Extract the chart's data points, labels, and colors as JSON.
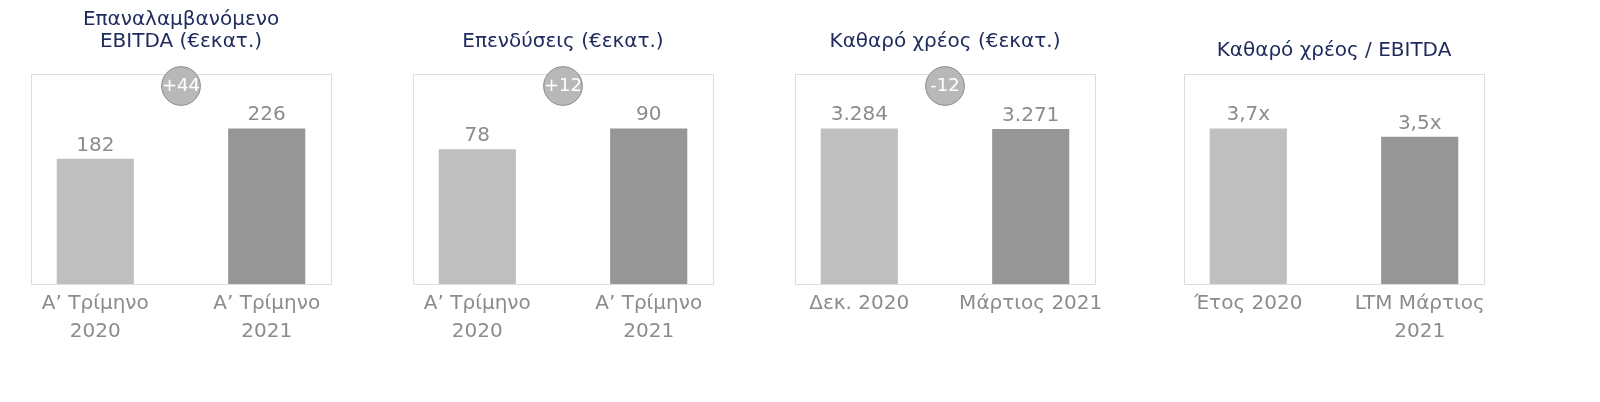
{
  "chart_data": [
    {
      "type": "bar",
      "title": "Επαναλαμβανόμενο EBITDA (€εκατ.)",
      "categories": [
        "Α’ Τρίμηνο 2020",
        "Α’ Τρίμηνο 2021"
      ],
      "values": [
        182,
        226
      ],
      "colors": [
        "#bfbfbf",
        "#969696"
      ],
      "data_labels": true,
      "annotations": [
        "+44"
      ]
    },
    {
      "type": "bar",
      "title": "Επενδύσεις (€εκατ.)",
      "categories": [
        "Α’ Τρίμηνο 2020",
        "Α’ Τρίμηνο 2021"
      ],
      "values": [
        78,
        90
      ],
      "colors": [
        "#bfbfbf",
        "#969696"
      ],
      "data_labels": true,
      "annotations": [
        "+12"
      ]
    },
    {
      "type": "bar",
      "title": "Καθαρό χρέος (€εκατ.)",
      "categories": [
        "Δεκ. 2020",
        "Μάρτιος 2021"
      ],
      "values": [
        3284,
        3271
      ],
      "colors": [
        "#bfbfbf",
        "#969696"
      ],
      "value_labels": [
        "3.284",
        "3.271"
      ],
      "annotations": [
        "-12"
      ]
    },
    {
      "type": "bar",
      "title": "Καθαρό χρέος / EBITDA",
      "categories": [
        "Έτος 2020",
        "LTM Μάρτιος 2021"
      ],
      "values": [
        3.7,
        3.5
      ],
      "colors": [
        "#bfbfbf",
        "#969696"
      ],
      "value_labels": [
        "3,7x",
        "3,5x"
      ]
    }
  ]
}
